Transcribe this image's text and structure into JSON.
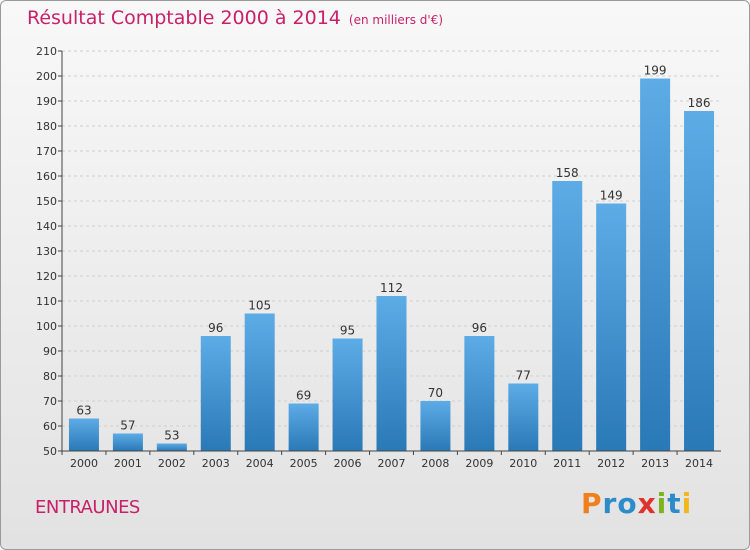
{
  "title": "Résultat Comptable 2000 à 2014",
  "unit_note": "(en milliers d'€)",
  "commune": "ENTRAUNES",
  "logo": {
    "text": "Proxiti",
    "letters": [
      "P",
      "r",
      "o",
      "x",
      "i",
      "t",
      "i"
    ],
    "colors": [
      "#f07f1c",
      "#2c8cc9",
      "#2c8cc9",
      "#e0322c",
      "#7ab51d",
      "#2c8cc9",
      "#f0b81c"
    ]
  },
  "colors": {
    "title": "#c8216a",
    "bar_top": "#5dace6",
    "bar_bottom": "#2a79b7",
    "grid": "#cfcfcf",
    "axis": "#444444"
  },
  "chart_data": {
    "type": "bar",
    "title": "Résultat Comptable 2000 à 2014",
    "xlabel": "",
    "ylabel": "en milliers d'€",
    "categories": [
      "2000",
      "2001",
      "2002",
      "2003",
      "2004",
      "2005",
      "2006",
      "2007",
      "2008",
      "2009",
      "2010",
      "2011",
      "2012",
      "2013",
      "2014"
    ],
    "values": [
      63,
      57,
      53,
      96,
      105,
      69,
      95,
      112,
      70,
      96,
      77,
      158,
      149,
      199,
      186
    ],
    "ylim": [
      50,
      210
    ],
    "yticks": [
      50,
      60,
      70,
      80,
      90,
      100,
      110,
      120,
      130,
      140,
      150,
      160,
      170,
      180,
      190,
      200,
      210
    ],
    "grid": true
  }
}
